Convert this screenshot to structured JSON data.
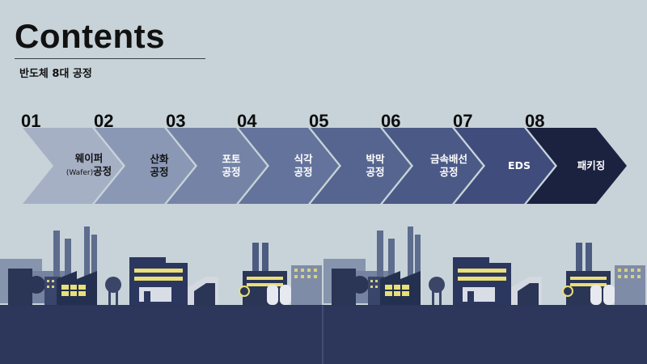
{
  "header": {
    "title": "Contents",
    "subtitle": "반도체 8대 공정"
  },
  "steps": [
    {
      "num": "01",
      "line1": "웨이퍼",
      "line2_small": "(Wafer)",
      "line2": "공정",
      "color": "#a6b0c5",
      "text_color": "#111"
    },
    {
      "num": "02",
      "line1": "산화",
      "line2": "공정",
      "color": "#8a98b5",
      "text_color": "#111"
    },
    {
      "num": "03",
      "line1": "포토",
      "line2": "공정",
      "color": "#7584a6",
      "text_color": "#fff"
    },
    {
      "num": "04",
      "line1": "식각",
      "line2": "공정",
      "color": "#64739b",
      "text_color": "#fff"
    },
    {
      "num": "05",
      "line1": "박막",
      "line2": "공정",
      "color": "#56658f",
      "text_color": "#fff"
    },
    {
      "num": "06",
      "line1": "금속배선",
      "line2": "공정",
      "color": "#4b5987",
      "text_color": "#fff"
    },
    {
      "num": "07",
      "line1": "EDS",
      "line2": "",
      "color": "#3f4c7c",
      "text_color": "#fff"
    },
    {
      "num": "08",
      "line1": "패키징",
      "line2": "",
      "color": "#1b2240",
      "text_color": "#fff"
    }
  ]
}
